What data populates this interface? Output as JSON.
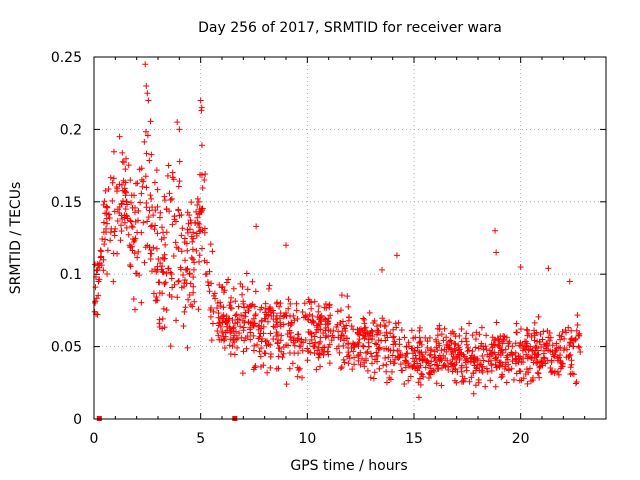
{
  "chart_data": {
    "type": "scatter",
    "title": "Day 256 of 2017, SRMTID for receiver wara",
    "xlabel": "GPS time / hours",
    "ylabel": "SRMTID / TECUs",
    "xlim": [
      0,
      24
    ],
    "ylim": [
      0,
      0.25
    ],
    "x_ticks": [
      0,
      5,
      10,
      15,
      20
    ],
    "x_tick_labels": [
      "0",
      "5",
      "10",
      "15",
      "20"
    ],
    "y_ticks": [
      0,
      0.05,
      0.1,
      0.15,
      0.2,
      0.25
    ],
    "y_tick_labels": [
      "0",
      "0.05",
      "0.1",
      "0.15",
      "0.2",
      "0.25"
    ],
    "grid": true,
    "marker": "+",
    "series": [
      {
        "name": "SRMTID",
        "color": "#ff0000",
        "profile": [
          {
            "x": 0.0,
            "y": 0.075,
            "spread": 0.015
          },
          {
            "x": 0.5,
            "y": 0.135,
            "spread": 0.025
          },
          {
            "x": 1.0,
            "y": 0.145,
            "spread": 0.03
          },
          {
            "x": 1.5,
            "y": 0.15,
            "spread": 0.03
          },
          {
            "x": 2.0,
            "y": 0.12,
            "spread": 0.04
          },
          {
            "x": 2.5,
            "y": 0.155,
            "spread": 0.045
          },
          {
            "x": 3.0,
            "y": 0.105,
            "spread": 0.04
          },
          {
            "x": 3.5,
            "y": 0.12,
            "spread": 0.04
          },
          {
            "x": 4.0,
            "y": 0.12,
            "spread": 0.045
          },
          {
            "x": 4.5,
            "y": 0.1,
            "spread": 0.04
          },
          {
            "x": 5.0,
            "y": 0.15,
            "spread": 0.045
          },
          {
            "x": 5.5,
            "y": 0.085,
            "spread": 0.03
          },
          {
            "x": 6.0,
            "y": 0.07,
            "spread": 0.025
          },
          {
            "x": 7.0,
            "y": 0.065,
            "spread": 0.025
          },
          {
            "x": 8.0,
            "y": 0.065,
            "spread": 0.022
          },
          {
            "x": 9.0,
            "y": 0.055,
            "spread": 0.02
          },
          {
            "x": 10.0,
            "y": 0.06,
            "spread": 0.022
          },
          {
            "x": 11.0,
            "y": 0.06,
            "spread": 0.02
          },
          {
            "x": 12.0,
            "y": 0.055,
            "spread": 0.02
          },
          {
            "x": 13.0,
            "y": 0.05,
            "spread": 0.018
          },
          {
            "x": 14.0,
            "y": 0.05,
            "spread": 0.02
          },
          {
            "x": 15.0,
            "y": 0.04,
            "spread": 0.015
          },
          {
            "x": 16.0,
            "y": 0.045,
            "spread": 0.015
          },
          {
            "x": 17.0,
            "y": 0.045,
            "spread": 0.015
          },
          {
            "x": 18.0,
            "y": 0.04,
            "spread": 0.015
          },
          {
            "x": 19.0,
            "y": 0.045,
            "spread": 0.015
          },
          {
            "x": 20.0,
            "y": 0.045,
            "spread": 0.015
          },
          {
            "x": 21.0,
            "y": 0.045,
            "spread": 0.015
          },
          {
            "x": 22.0,
            "y": 0.045,
            "spread": 0.02
          },
          {
            "x": 22.8,
            "y": 0.05,
            "spread": 0.02
          }
        ],
        "peaks": [
          {
            "x": 2.4,
            "y": 0.245
          },
          {
            "x": 2.45,
            "y": 0.23
          },
          {
            "x": 2.5,
            "y": 0.225
          },
          {
            "x": 2.55,
            "y": 0.22
          },
          {
            "x": 3.9,
            "y": 0.205
          },
          {
            "x": 4.0,
            "y": 0.2
          },
          {
            "x": 5.0,
            "y": 0.22
          },
          {
            "x": 5.05,
            "y": 0.215
          },
          {
            "x": 1.2,
            "y": 0.195
          },
          {
            "x": 1.7,
            "y": 0.165
          },
          {
            "x": 7.6,
            "y": 0.133
          },
          {
            "x": 9.0,
            "y": 0.12
          },
          {
            "x": 13.5,
            "y": 0.103
          },
          {
            "x": 14.2,
            "y": 0.113
          },
          {
            "x": 18.8,
            "y": 0.13
          },
          {
            "x": 18.85,
            "y": 0.115
          },
          {
            "x": 20.0,
            "y": 0.105
          },
          {
            "x": 21.3,
            "y": 0.104
          },
          {
            "x": 22.3,
            "y": 0.095
          }
        ],
        "count": 1500
      }
    ],
    "axis_markers": [
      {
        "x": 0.25,
        "y": 0
      },
      {
        "x": 6.6,
        "y": 0
      }
    ]
  }
}
